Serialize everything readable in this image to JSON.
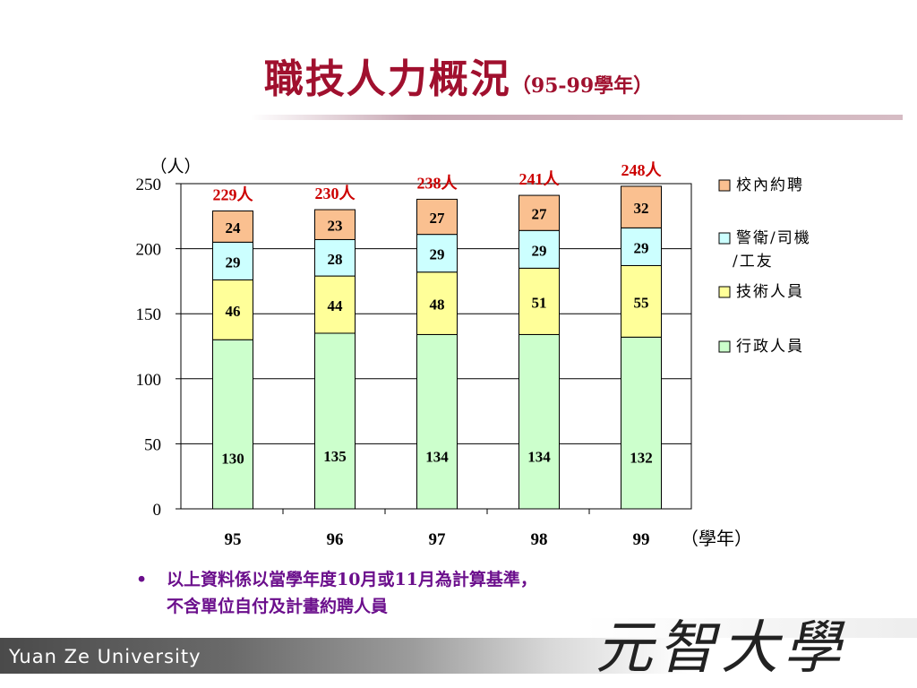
{
  "title": {
    "main": "職技人力概況",
    "sub": "（95-99學年）"
  },
  "chart_data": {
    "type": "bar",
    "stacked": true,
    "ylabel": "（人）",
    "xlabel": "（學年）",
    "ylim": [
      0,
      250
    ],
    "yticks": [
      0,
      50,
      100,
      150,
      200,
      250
    ],
    "grid": true,
    "legend_position": "right",
    "categories": [
      "95",
      "96",
      "97",
      "98",
      "99"
    ],
    "series": [
      {
        "name": "行政人員",
        "color": "#ccffcc",
        "values": [
          130,
          135,
          134,
          134,
          132
        ]
      },
      {
        "name": "技術人員",
        "color": "#ffff99",
        "values": [
          46,
          44,
          48,
          51,
          55
        ]
      },
      {
        "name": "警衛/司機/工友",
        "name_lines": [
          "警衛/司機",
          "/工友"
        ],
        "color": "#ccffff",
        "values": [
          29,
          28,
          29,
          29,
          29
        ]
      },
      {
        "name": "校內約聘",
        "color": "#fac090",
        "values": [
          24,
          23,
          27,
          27,
          32
        ]
      }
    ],
    "totals": [
      "229人",
      "230人",
      "238人",
      "241人",
      "248人"
    ],
    "totals_color": "#cc0000"
  },
  "note": {
    "bullet": "•",
    "lines": [
      "以上資料係以當學年度10月或11月為計算基準，",
      "不含單位自付及計畫約聘人員"
    ]
  },
  "footer": {
    "university": "Yuan Ze University",
    "logo": "元智大學"
  }
}
